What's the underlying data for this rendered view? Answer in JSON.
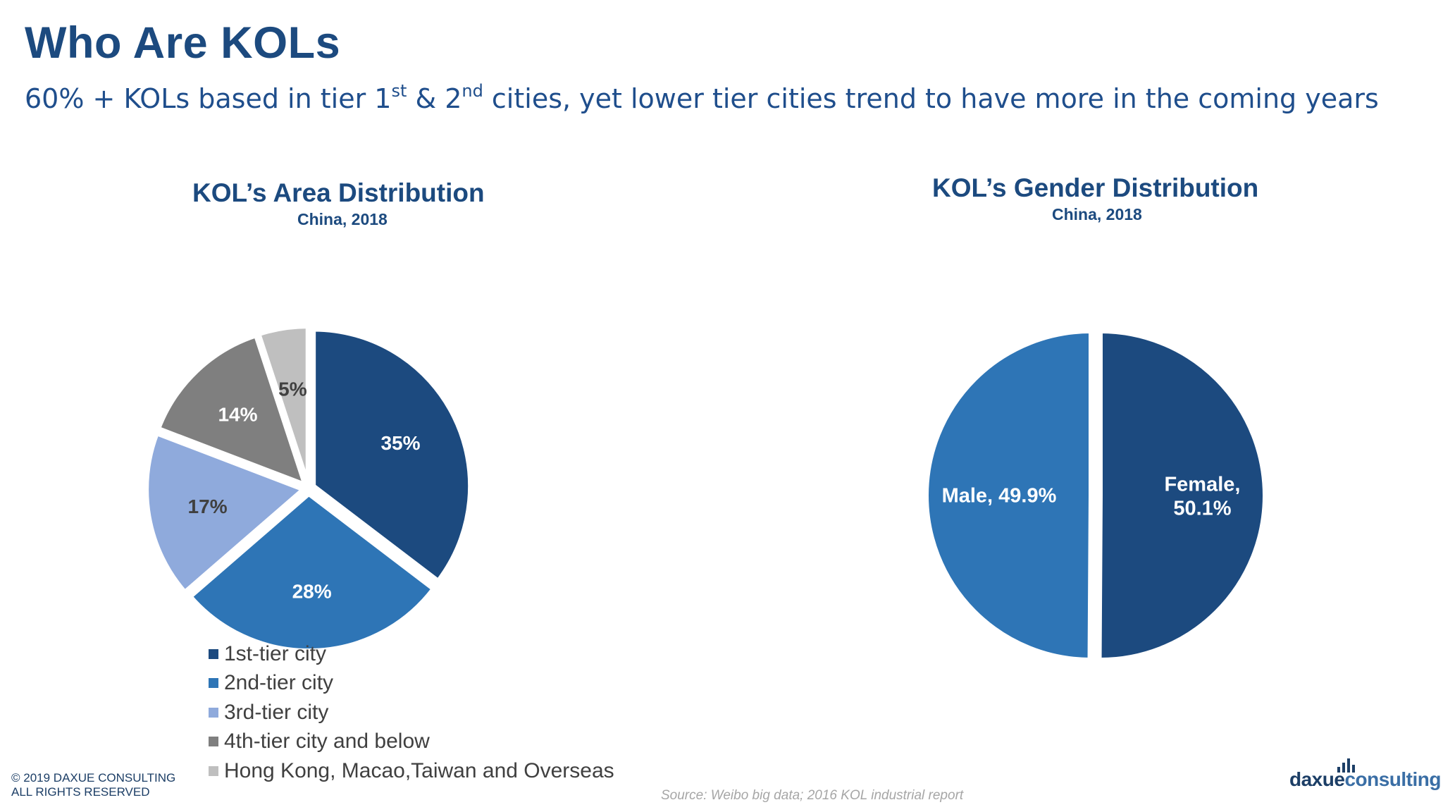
{
  "slide": {
    "title": "Who Are KOLs",
    "subtitle_parts": {
      "a": "60% + KOLs based in tier 1",
      "sup1": "st",
      "b": " & 2",
      "sup2": "nd",
      "c": " cities, yet lower tier cities trend to have more in the coming years"
    },
    "copyright_line1": "© 2019 DAXUE CONSULTING",
    "copyright_line2": "ALL RIGHTS RESERVED",
    "source": "Source: Weibo big data; 2016 KOL industrial report",
    "logo": {
      "part1": "daxue",
      "part2": "consulting",
      "bars-icon": "bar-chart-logo-icon"
    }
  },
  "chart_data": [
    {
      "type": "pie",
      "title": "KOL’s Area Distribution",
      "subtitle": "China, 2018",
      "categories": [
        "1st-tier city",
        "2nd-tier city",
        "3rd-tier city",
        "4th-tier city and below",
        "Hong Kong, Macao,Taiwan and Overseas"
      ],
      "values": [
        35,
        28,
        17,
        14,
        5
      ],
      "data_labels": [
        "35%",
        "28%",
        "17%",
        "14%",
        "5%"
      ],
      "colors": [
        "#1c4a7f",
        "#2e75b6",
        "#8faadc",
        "#7f7f7f",
        "#bfbfbf"
      ],
      "legend_placement": "bottom"
    },
    {
      "type": "pie",
      "title": "KOL’s Gender Distribution",
      "subtitle": "China, 2018",
      "categories": [
        "Female",
        "Male"
      ],
      "values": [
        50.1,
        49.9
      ],
      "data_labels": [
        [
          "Female,",
          "50.1%"
        ],
        [
          "Male, 49.9%"
        ]
      ],
      "colors": [
        "#1c4a7f",
        "#2e75b6"
      ],
      "legend_placement": "none"
    }
  ]
}
